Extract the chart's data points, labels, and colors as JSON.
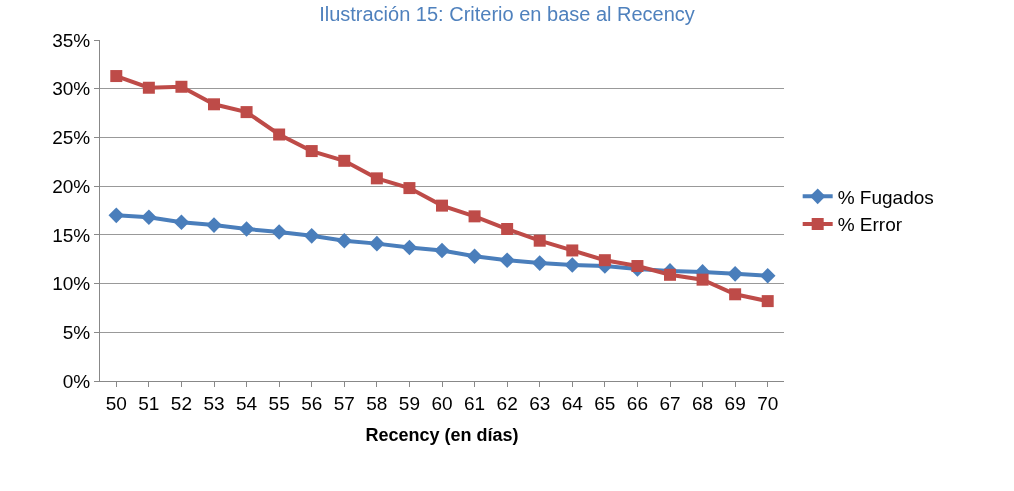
{
  "chart_data": {
    "type": "line",
    "title": "Ilustración 15: Criterio en base al Recency",
    "xlabel": "Recency (en días)",
    "categories": [
      "50",
      "51",
      "52",
      "53",
      "54",
      "55",
      "56",
      "57",
      "58",
      "59",
      "60",
      "61",
      "62",
      "63",
      "64",
      "65",
      "66",
      "67",
      "68",
      "69",
      "70"
    ],
    "series": [
      {
        "name": "% Fugados",
        "color": "#4a7ebb",
        "marker": "diamond",
        "values": [
          17.0,
          16.8,
          16.3,
          16.0,
          15.6,
          15.3,
          14.9,
          14.4,
          14.1,
          13.7,
          13.4,
          12.8,
          12.4,
          12.1,
          11.9,
          11.8,
          11.5,
          11.3,
          11.2,
          11.0,
          10.8
        ]
      },
      {
        "name": "% Error",
        "color": "#be4b48",
        "marker": "square",
        "values": [
          31.3,
          30.1,
          30.2,
          28.4,
          27.6,
          25.3,
          23.6,
          22.6,
          20.8,
          19.8,
          18.0,
          16.9,
          15.6,
          14.4,
          13.4,
          12.4,
          11.8,
          10.9,
          10.4,
          8.9,
          8.2
        ]
      }
    ],
    "ylim": [
      0,
      35
    ],
    "yticks": [
      {
        "value": 0,
        "label": "0%"
      },
      {
        "value": 5,
        "label": "5%"
      },
      {
        "value": 10,
        "label": "10%"
      },
      {
        "value": 15,
        "label": "15%"
      },
      {
        "value": 20,
        "label": "20%"
      },
      {
        "value": 25,
        "label": "25%"
      },
      {
        "value": 30,
        "label": "30%"
      },
      {
        "value": 35,
        "label": "35%"
      }
    ],
    "grid": "y",
    "legend": "right",
    "line_style": "solid"
  }
}
